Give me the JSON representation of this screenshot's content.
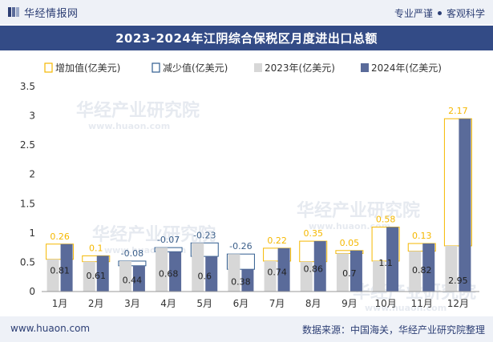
{
  "header": {
    "logo_text": "华经情报网",
    "slogan_left": "专业严谨",
    "slogan_right": "客观科学"
  },
  "title": "2023-2024年江阴综合保税区月度进出口总额",
  "footer": {
    "url": "www.huaon.com",
    "source": "数据来源：中国海关，华经产业研究院整理"
  },
  "watermark": {
    "text": "华经产业研究院",
    "url": "www.huaon.com"
  },
  "colors": {
    "increase_border": "#f5b800",
    "decrease_border": "#2f5c8f",
    "bar_2023": "#d7d7d7",
    "bar_2024": "#5a6b9a",
    "header_bg": "#334b86",
    "band_bg": "#eef1f7",
    "label_increase": "#f5b800",
    "label_decrease": "#3b5f8a"
  },
  "chart_data": {
    "type": "bar",
    "categories": [
      "1月",
      "2月",
      "3月",
      "4月",
      "5月",
      "6月",
      "7月",
      "8月",
      "9月",
      "10月",
      "11月",
      "12月"
    ],
    "series": [
      {
        "name": "2023年(亿美元)",
        "values": [
          0.55,
          0.51,
          0.52,
          0.75,
          0.83,
          0.64,
          0.52,
          0.51,
          0.65,
          0.52,
          0.69,
          0.78
        ]
      },
      {
        "name": "2024年(亿美元)",
        "values": [
          0.81,
          0.61,
          0.44,
          0.68,
          0.6,
          0.38,
          0.74,
          0.86,
          0.7,
          1.1,
          0.82,
          2.95
        ]
      }
    ],
    "changes": [
      0.26,
      0.1,
      -0.08,
      -0.07,
      -0.23,
      -0.26,
      0.22,
      0.35,
      0.05,
      0.58,
      0.13,
      2.17
    ],
    "change_labels": [
      "0.26",
      "0.1",
      "-0.08",
      "-0.07",
      "-0.23",
      "-0.26",
      "0.22",
      "0.35",
      "0.05",
      "0.58",
      "0.13",
      "2.17"
    ],
    "value_labels_2024": [
      "0.81",
      "0.61",
      "0.44",
      "0.68",
      "0.6",
      "0.38",
      "0.74",
      "0.86",
      "0.7",
      "1.1",
      "0.82",
      "2.95"
    ],
    "legend": [
      "增加值(亿美元)",
      "减少值(亿美元)",
      "2023年(亿美元)",
      "2024年(亿美元)"
    ],
    "y_ticks": [
      "0",
      "0.5",
      "1",
      "1.5",
      "2",
      "2.5",
      "3",
      "3.5"
    ],
    "ylim": [
      0,
      3.5
    ],
    "grid": false,
    "legend_position": "top"
  }
}
